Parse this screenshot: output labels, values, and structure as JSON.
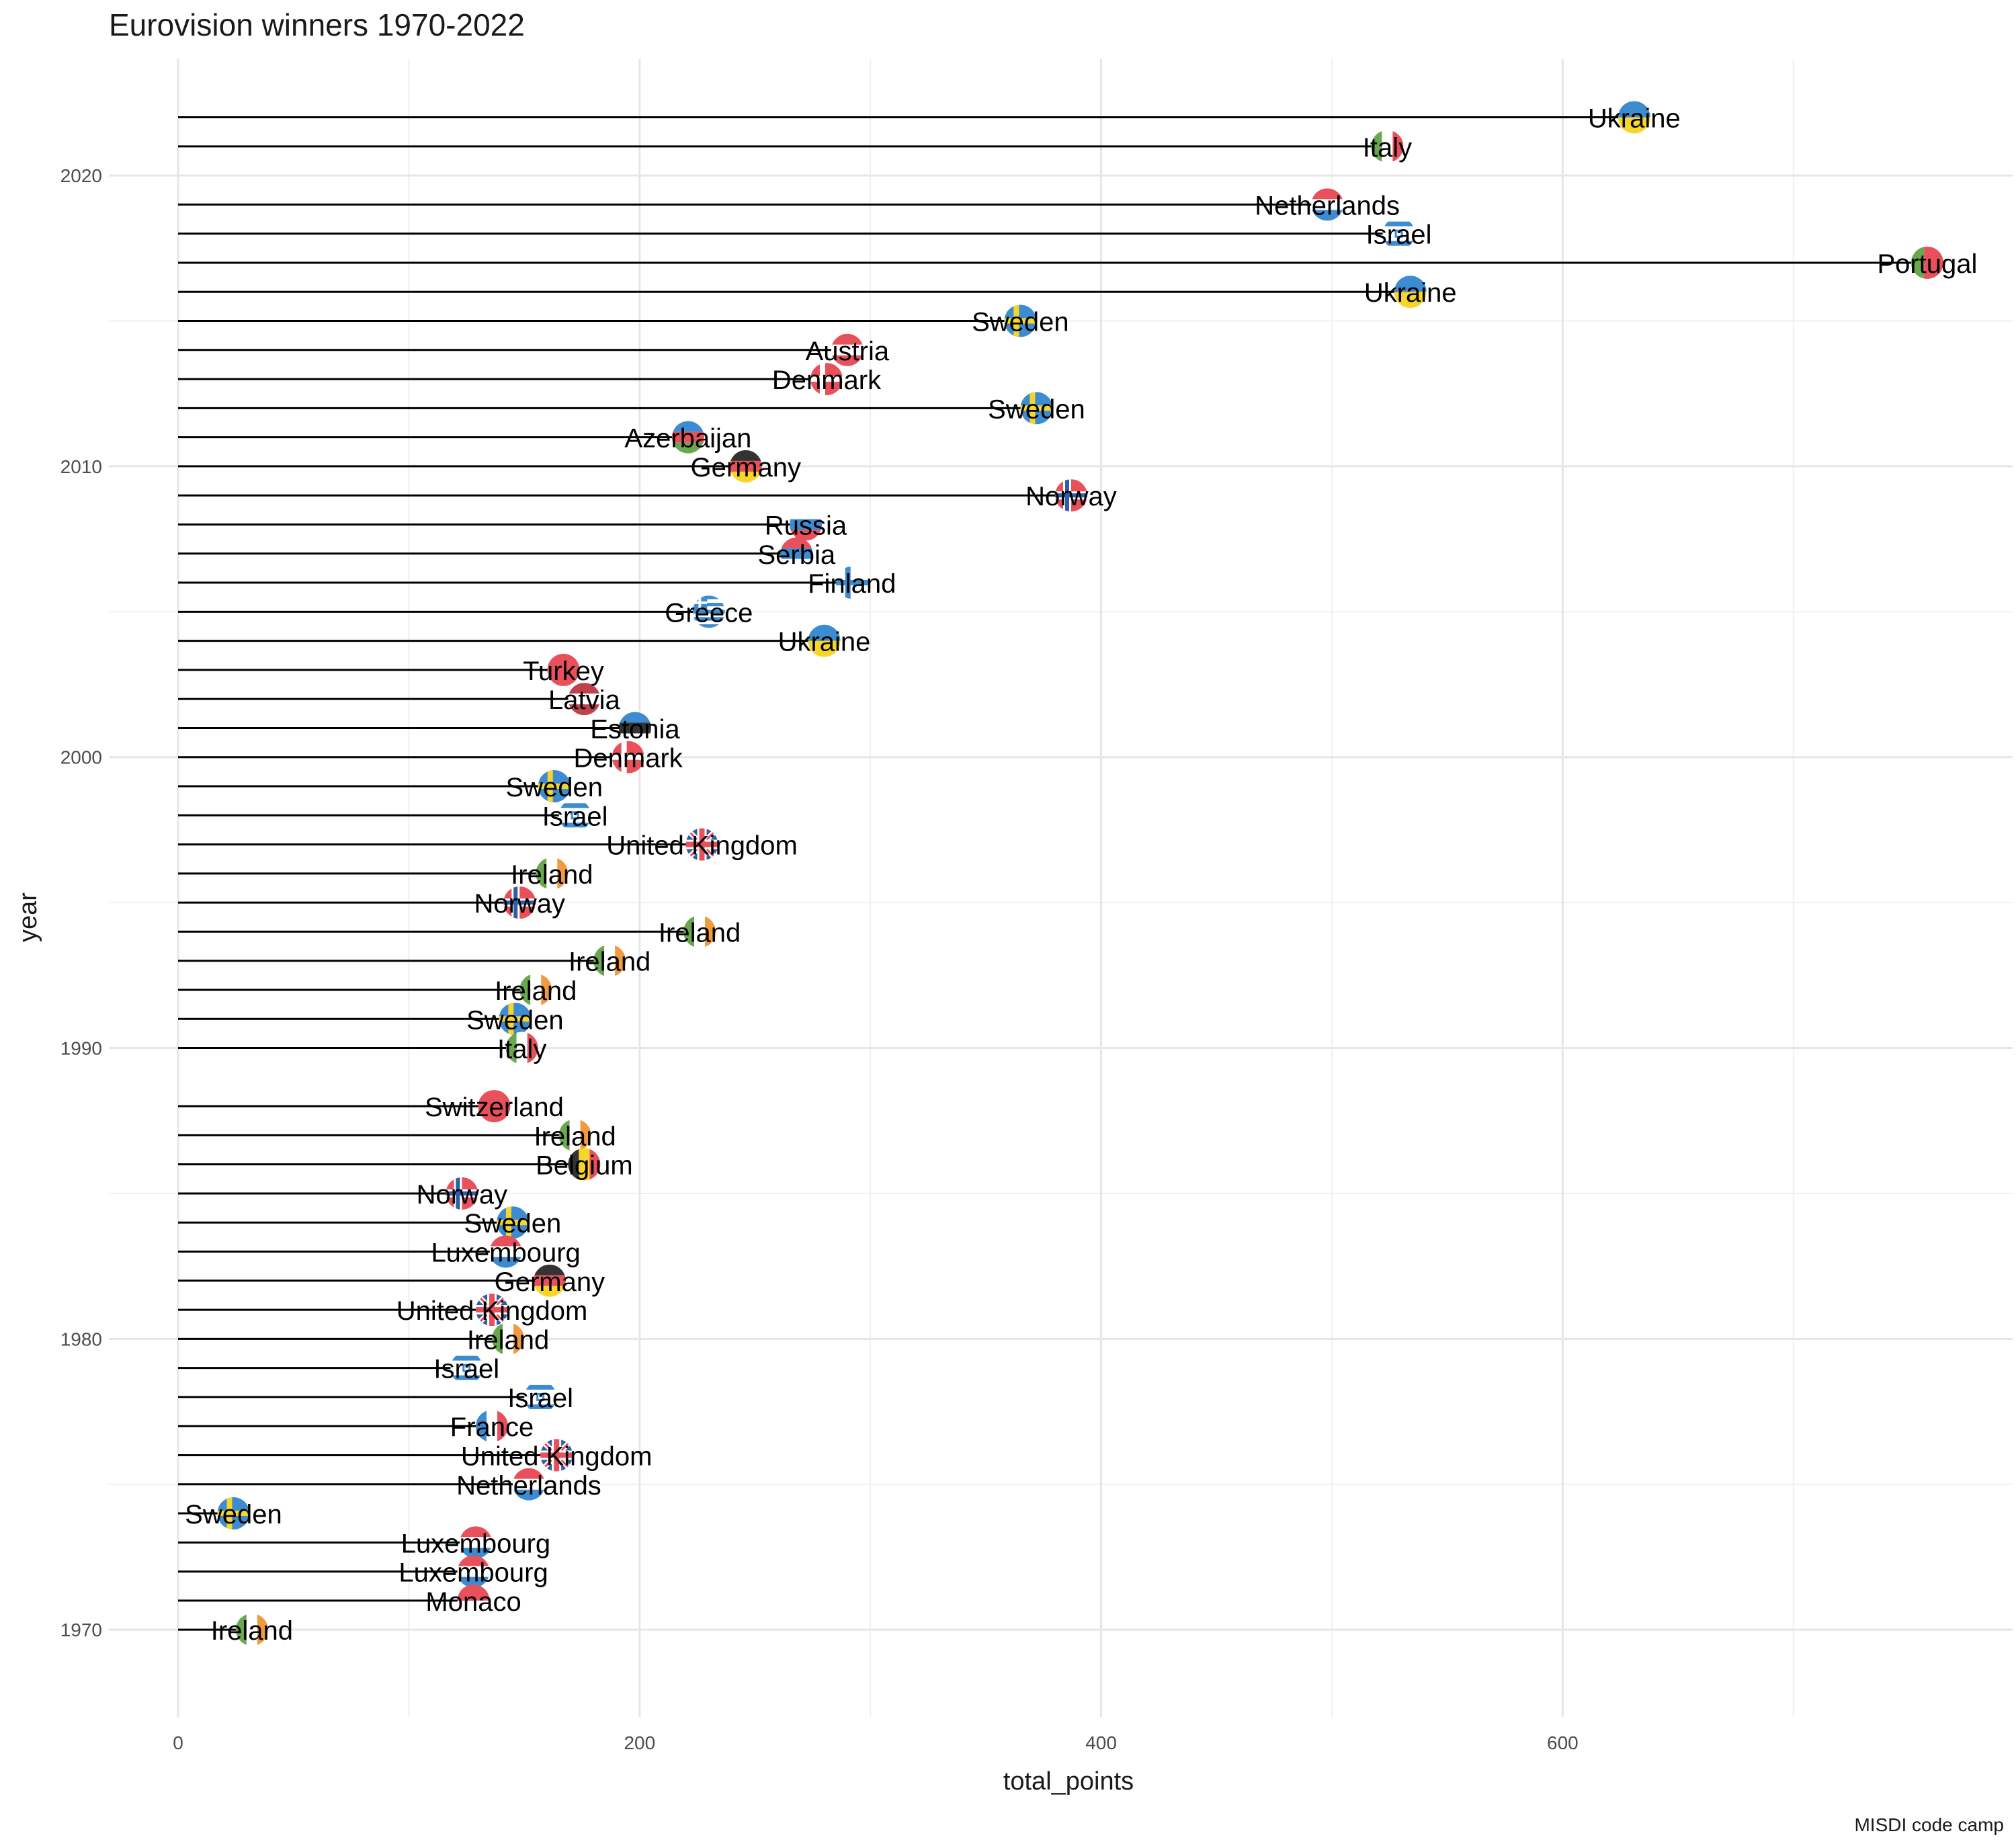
{
  "chart_data": {
    "type": "lollipop",
    "title": "Eurovision winners 1970-2022",
    "xlabel": "total_points",
    "ylabel": "year",
    "caption": "MISDI code camp",
    "xlim": [
      -30,
      795
    ],
    "ylim": [
      1967,
      2024
    ],
    "x_ticks": [
      0,
      200,
      400,
      600
    ],
    "y_ticks": [
      1970,
      1980,
      1990,
      2000,
      2010,
      2020
    ],
    "grid": true,
    "points": [
      {
        "year": 2022,
        "country": "Ukraine",
        "total_points": 631
      },
      {
        "year": 2021,
        "country": "Italy",
        "total_points": 524
      },
      {
        "year": 2019,
        "country": "Netherlands",
        "total_points": 498
      },
      {
        "year": 2018,
        "country": "Israel",
        "total_points": 529
      },
      {
        "year": 2017,
        "country": "Portugal",
        "total_points": 758
      },
      {
        "year": 2016,
        "country": "Ukraine",
        "total_points": 534
      },
      {
        "year": 2015,
        "country": "Sweden",
        "total_points": 365
      },
      {
        "year": 2014,
        "country": "Austria",
        "total_points": 290
      },
      {
        "year": 2013,
        "country": "Denmark",
        "total_points": 281
      },
      {
        "year": 2012,
        "country": "Sweden",
        "total_points": 372
      },
      {
        "year": 2011,
        "country": "Azerbaijan",
        "total_points": 221
      },
      {
        "year": 2010,
        "country": "Germany",
        "total_points": 246
      },
      {
        "year": 2009,
        "country": "Norway",
        "total_points": 387
      },
      {
        "year": 2008,
        "country": "Russia",
        "total_points": 272
      },
      {
        "year": 2007,
        "country": "Serbia",
        "total_points": 268
      },
      {
        "year": 2006,
        "country": "Finland",
        "total_points": 292
      },
      {
        "year": 2005,
        "country": "Greece",
        "total_points": 230
      },
      {
        "year": 2004,
        "country": "Ukraine",
        "total_points": 280
      },
      {
        "year": 2003,
        "country": "Turkey",
        "total_points": 167
      },
      {
        "year": 2002,
        "country": "Latvia",
        "total_points": 176
      },
      {
        "year": 2001,
        "country": "Estonia",
        "total_points": 198
      },
      {
        "year": 2000,
        "country": "Denmark",
        "total_points": 195
      },
      {
        "year": 1999,
        "country": "Sweden",
        "total_points": 163
      },
      {
        "year": 1998,
        "country": "Israel",
        "total_points": 172
      },
      {
        "year": 1997,
        "country": "United Kingdom",
        "total_points": 227
      },
      {
        "year": 1996,
        "country": "Ireland",
        "total_points": 162
      },
      {
        "year": 1995,
        "country": "Norway",
        "total_points": 148
      },
      {
        "year": 1994,
        "country": "Ireland",
        "total_points": 226
      },
      {
        "year": 1993,
        "country": "Ireland",
        "total_points": 187
      },
      {
        "year": 1992,
        "country": "Ireland",
        "total_points": 155
      },
      {
        "year": 1991,
        "country": "Sweden",
        "total_points": 146
      },
      {
        "year": 1990,
        "country": "Italy",
        "total_points": 149
      },
      {
        "year": 1988,
        "country": "Switzerland",
        "total_points": 137
      },
      {
        "year": 1987,
        "country": "Ireland",
        "total_points": 172
      },
      {
        "year": 1986,
        "country": "Belgium",
        "total_points": 176
      },
      {
        "year": 1985,
        "country": "Norway",
        "total_points": 123
      },
      {
        "year": 1984,
        "country": "Sweden",
        "total_points": 145
      },
      {
        "year": 1983,
        "country": "Luxembourg",
        "total_points": 142
      },
      {
        "year": 1982,
        "country": "Germany",
        "total_points": 161
      },
      {
        "year": 1981,
        "country": "United Kingdom",
        "total_points": 136
      },
      {
        "year": 1980,
        "country": "Ireland",
        "total_points": 143
      },
      {
        "year": 1979,
        "country": "Israel",
        "total_points": 125
      },
      {
        "year": 1978,
        "country": "Israel",
        "total_points": 157
      },
      {
        "year": 1977,
        "country": "France",
        "total_points": 136
      },
      {
        "year": 1976,
        "country": "United Kingdom",
        "total_points": 164
      },
      {
        "year": 1975,
        "country": "Netherlands",
        "total_points": 152
      },
      {
        "year": 1974,
        "country": "Sweden",
        "total_points": 24
      },
      {
        "year": 1973,
        "country": "Luxembourg",
        "total_points": 129
      },
      {
        "year": 1972,
        "country": "Luxembourg",
        "total_points": 128
      },
      {
        "year": 1971,
        "country": "Monaco",
        "total_points": 128
      },
      {
        "year": 1970,
        "country": "Ireland",
        "total_points": 32
      }
    ]
  },
  "flags": {
    "Ukraine": {
      "kind": "h2",
      "colors": [
        "#3d8bd0",
        "#f7d52a"
      ]
    },
    "Italy": {
      "kind": "v3",
      "colors": [
        "#6aa84f",
        "#ffffff",
        "#e8505b"
      ]
    },
    "Netherlands": {
      "kind": "h3",
      "colors": [
        "#e8505b",
        "#ffffff",
        "#3d8bd0"
      ]
    },
    "Israel": {
      "kind": "il",
      "colors": [
        "#ffffff",
        "#3d8bd0"
      ]
    },
    "Portugal": {
      "kind": "v2",
      "colors": [
        "#6aa84f",
        "#e8505b"
      ]
    },
    "Sweden": {
      "kind": "nordic",
      "colors": [
        "#3d8bd0",
        "#f7d52a"
      ]
    },
    "Austria": {
      "kind": "h3",
      "colors": [
        "#e8505b",
        "#ffffff",
        "#e8505b"
      ]
    },
    "Denmark": {
      "kind": "nordic",
      "colors": [
        "#e8505b",
        "#ffffff"
      ]
    },
    "Azerbaijan": {
      "kind": "h3",
      "colors": [
        "#3d8bd0",
        "#e8505b",
        "#6aa84f"
      ]
    },
    "Germany": {
      "kind": "h3",
      "colors": [
        "#333333",
        "#e8505b",
        "#f7d52a"
      ]
    },
    "Norway": {
      "kind": "nordic2",
      "colors": [
        "#e8505b",
        "#ffffff",
        "#2c5fa8"
      ]
    },
    "Russia": {
      "kind": "h3",
      "colors": [
        "#ffffff",
        "#3d8bd0",
        "#e8505b"
      ]
    },
    "Serbia": {
      "kind": "h3",
      "colors": [
        "#e8505b",
        "#3d8bd0",
        "#ffffff"
      ]
    },
    "Finland": {
      "kind": "nordic",
      "colors": [
        "#ffffff",
        "#3d8bd0"
      ]
    },
    "Greece": {
      "kind": "stripes",
      "colors": [
        "#3d8bd0",
        "#ffffff"
      ]
    },
    "Turkey": {
      "kind": "solid",
      "colors": [
        "#e8505b",
        "#ffffff"
      ]
    },
    "Latvia": {
      "kind": "h3",
      "colors": [
        "#c0414b",
        "#ffffff",
        "#c0414b"
      ]
    },
    "Estonia": {
      "kind": "h3",
      "colors": [
        "#3d8bd0",
        "#333333",
        "#ffffff"
      ]
    },
    "United Kingdom": {
      "kind": "uk",
      "colors": [
        "#2c5fa8",
        "#ffffff",
        "#e8505b"
      ]
    },
    "Ireland": {
      "kind": "v3",
      "colors": [
        "#6aa84f",
        "#ffffff",
        "#f29a3f"
      ]
    },
    "Switzerland": {
      "kind": "solid",
      "colors": [
        "#e8505b",
        "#ffffff"
      ]
    },
    "Belgium": {
      "kind": "v3",
      "colors": [
        "#333333",
        "#f7d52a",
        "#e8505b"
      ]
    },
    "Luxembourg": {
      "kind": "h3",
      "colors": [
        "#e8505b",
        "#ffffff",
        "#3d8bd0"
      ]
    },
    "France": {
      "kind": "v3",
      "colors": [
        "#3d8bd0",
        "#ffffff",
        "#e8505b"
      ]
    },
    "Monaco": {
      "kind": "h2",
      "colors": [
        "#e8505b",
        "#ffffff"
      ]
    }
  }
}
